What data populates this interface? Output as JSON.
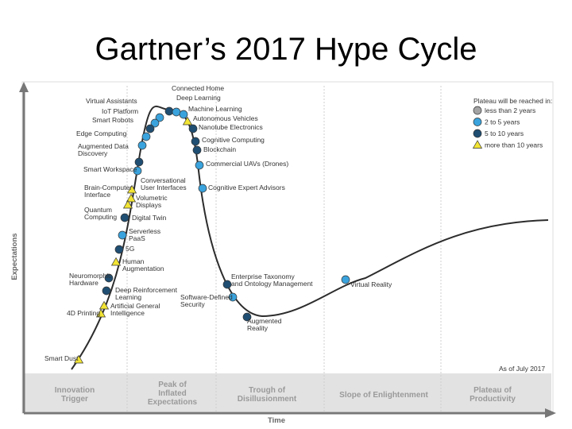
{
  "title": "Gartner’s 2017 Hype Cycle",
  "axis": {
    "y_label": "Expectations",
    "x_label": "Time"
  },
  "as_of": "As of July 2017",
  "legend": {
    "title": "Plateau will be reached in:",
    "items": [
      {
        "label": "less than 2 years",
        "marker": "circle",
        "color": "#a3a3a3"
      },
      {
        "label": "2 to 5 years",
        "marker": "circle",
        "color": "#3aa3dd"
      },
      {
        "label": "5 to 10 years",
        "marker": "circle",
        "color": "#1f4e72"
      },
      {
        "label": "more than 10 years",
        "marker": "triangle",
        "color": "#f2e434"
      }
    ]
  },
  "phases": [
    {
      "lines": [
        "Innovation",
        "Trigger"
      ]
    },
    {
      "lines": [
        "Peak of",
        "Inflated",
        "Expectations"
      ]
    },
    {
      "lines": [
        "Trough of",
        "Disillusionment"
      ]
    },
    {
      "lines": [
        "Slope of Enlightenment"
      ]
    },
    {
      "lines": [
        "Plateau of",
        "Productivity"
      ]
    }
  ],
  "technologies": [
    {
      "label": [
        "Connected Home"
      ],
      "category": "5 to 10 years"
    },
    {
      "label": [
        "Deep Learning"
      ],
      "category": "2 to 5 years"
    },
    {
      "label": [
        "Virtual Assistants"
      ],
      "category": "2 to 5 years"
    },
    {
      "label": [
        "IoT Platform"
      ],
      "category": "2 to 5 years"
    },
    {
      "label": [
        "Machine Learning"
      ],
      "category": "2 to 5 years"
    },
    {
      "label": [
        "Autonomous Vehicles"
      ],
      "category": "more than 10 years"
    },
    {
      "label": [
        "Smart Robots"
      ],
      "category": "5 to 10 years"
    },
    {
      "label": [
        "Nanotube Electronics"
      ],
      "category": "5 to 10 years"
    },
    {
      "label": [
        "Edge Computing"
      ],
      "category": "2 to 5 years"
    },
    {
      "label": [
        "Cognitive Computing"
      ],
      "category": "5 to 10 years"
    },
    {
      "label": [
        "Augmented Data",
        "Discovery"
      ],
      "category": "2 to 5 years"
    },
    {
      "label": [
        "Blockchain"
      ],
      "category": "5 to 10 years"
    },
    {
      "label": [
        "Smart Workspace"
      ],
      "category": "5 to 10 years"
    },
    {
      "label": [
        "Commercial UAVs (Drones)"
      ],
      "category": "2 to 5 years"
    },
    {
      "label": [
        "Conversational",
        "User Interfaces"
      ],
      "category": "2 to 5 years"
    },
    {
      "label": [
        "Brain-Computer",
        "Interface"
      ],
      "category": "more than 10 years"
    },
    {
      "label": [
        "Cognitive Expert Advisors"
      ],
      "category": "2 to 5 years"
    },
    {
      "label": [
        "Volumetric",
        "Displays"
      ],
      "category": "more than 10 years"
    },
    {
      "label": [
        "Quantum",
        "Computing"
      ],
      "category": "more than 10 years"
    },
    {
      "label": [
        "Digital Twin"
      ],
      "category": "5 to 10 years"
    },
    {
      "label": [
        "Serverless",
        "PaaS"
      ],
      "category": "2 to 5 years"
    },
    {
      "label": [
        "5G"
      ],
      "category": "5 to 10 years"
    },
    {
      "label": [
        "Human",
        "Augmentation"
      ],
      "category": "more than 10 years"
    },
    {
      "label": [
        "Neuromorphic",
        "Hardware"
      ],
      "category": "5 to 10 years"
    },
    {
      "label": [
        "Deep Reinforcement",
        "Learning"
      ],
      "category": "5 to 10 years"
    },
    {
      "label": [
        "Artificial General",
        "Intelligence"
      ],
      "category": "more than 10 years"
    },
    {
      "label": [
        "4D Printing"
      ],
      "category": "more than 10 years"
    },
    {
      "label": [
        "Smart Dust"
      ],
      "category": "more than 10 years"
    },
    {
      "label": [
        "Enterprise Taxonomy",
        "and Ontology Management"
      ],
      "category": "5 to 10 years"
    },
    {
      "label": [
        "Software-Defined",
        "Security"
      ],
      "category": "2 to 5 years"
    },
    {
      "label": [
        "Augmented",
        "Reality"
      ],
      "category": "5 to 10 years"
    },
    {
      "label": [
        "Virtual Reality"
      ],
      "category": "2 to 5 years"
    }
  ]
}
